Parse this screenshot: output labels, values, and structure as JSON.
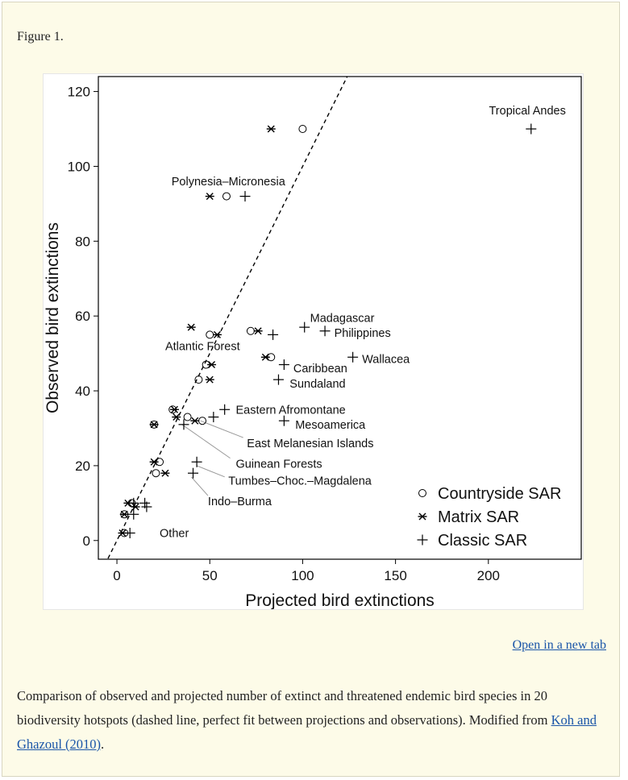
{
  "figure_label": "Figure 1.",
  "open_tab_label": "Open in a new tab",
  "caption": {
    "text": "Comparison of observed and projected number of extinct and threatened endemic bird species in 20 biodiversity hotspots (dashed line, perfect fit between projections and observations). Modified from ",
    "link": "Koh and Ghazoul (2010)",
    "tail": "."
  },
  "chart_data": {
    "type": "scatter",
    "title": "",
    "xlabel": "Projected bird extinctions",
    "ylabel": "Observed bird extinctions",
    "xlim": [
      -10,
      250
    ],
    "ylim": [
      -5,
      124
    ],
    "xticks": [
      0,
      50,
      100,
      150,
      200
    ],
    "yticks": [
      0,
      20,
      40,
      60,
      80,
      100,
      120
    ],
    "reference_line": {
      "style": "dashed",
      "description": "perfect fit",
      "points": [
        [
          0,
          0
        ],
        [
          124,
          124
        ]
      ]
    },
    "legend": {
      "placement": "bottom-right",
      "entries": [
        {
          "marker": "circle",
          "label": "Countryside SAR"
        },
        {
          "marker": "asterisk",
          "label": "Matrix SAR"
        },
        {
          "marker": "plus",
          "label": "Classic SAR"
        }
      ]
    },
    "series": [
      {
        "name": "Countryside SAR",
        "marker": "circle",
        "points": [
          [
            100,
            110
          ],
          [
            59,
            92
          ],
          [
            50,
            55
          ],
          [
            72,
            56
          ],
          [
            83,
            49
          ],
          [
            48,
            47
          ],
          [
            44,
            43
          ],
          [
            30,
            35
          ],
          [
            38,
            33
          ],
          [
            46,
            32
          ],
          [
            20,
            31
          ],
          [
            23,
            21
          ],
          [
            21,
            18
          ],
          [
            8,
            10
          ],
          [
            4,
            7
          ],
          [
            4,
            2
          ]
        ]
      },
      {
        "name": "Matrix SAR",
        "marker": "asterisk",
        "points": [
          [
            83,
            110
          ],
          [
            50,
            92
          ],
          [
            40,
            57
          ],
          [
            54,
            55
          ],
          [
            76,
            56
          ],
          [
            80,
            49
          ],
          [
            51,
            47
          ],
          [
            50,
            43
          ],
          [
            31,
            35
          ],
          [
            32,
            33
          ],
          [
            42,
            32
          ],
          [
            20,
            31
          ],
          [
            20,
            21
          ],
          [
            26,
            18
          ],
          [
            6,
            10
          ],
          [
            10,
            9
          ],
          [
            4,
            7
          ],
          [
            3,
            2
          ]
        ]
      },
      {
        "name": "Classic SAR",
        "marker": "plus",
        "points": [
          [
            223,
            110
          ],
          [
            69,
            92
          ],
          [
            101,
            57
          ],
          [
            112,
            56
          ],
          [
            84,
            55
          ],
          [
            127,
            49
          ],
          [
            90,
            47
          ],
          [
            87,
            43
          ],
          [
            58,
            35
          ],
          [
            90,
            32
          ],
          [
            52,
            33
          ],
          [
            36,
            31
          ],
          [
            43,
            21
          ],
          [
            41,
            18
          ],
          [
            15,
            10
          ],
          [
            16,
            9
          ],
          [
            9,
            10
          ],
          [
            9,
            7
          ],
          [
            7,
            2
          ]
        ]
      }
    ],
    "annotations": [
      {
        "text": "Tropical Andes",
        "x": 221,
        "y": 115
      },
      {
        "text": "Polynesia–Micronesia",
        "x": 60,
        "y": 96
      },
      {
        "text": "Madagascar",
        "x": 104,
        "y": 59.5
      },
      {
        "text": "Philippines",
        "x": 117,
        "y": 55.5
      },
      {
        "text": "Atlantic Forest",
        "x": 26,
        "y": 52
      },
      {
        "text": "Wallacea",
        "x": 132,
        "y": 48.5
      },
      {
        "text": "Caribbean",
        "x": 95,
        "y": 46
      },
      {
        "text": "Sundaland",
        "x": 93,
        "y": 42
      },
      {
        "text": "Eastern Afromontane",
        "x": 64,
        "y": 35
      },
      {
        "text": "Mesoamerica",
        "x": 96,
        "y": 31
      },
      {
        "text": "East Melanesian Islands",
        "x": 70,
        "y": 26
      },
      {
        "text": "Guinean Forests",
        "x": 64,
        "y": 20.5
      },
      {
        "text": "Tumbes–Choc.–Magdalena",
        "x": 60,
        "y": 16
      },
      {
        "text": "Indo–Burma",
        "x": 49,
        "y": 10.5
      },
      {
        "text": "Other",
        "x": 23,
        "y": 2
      }
    ],
    "leader_lines": [
      {
        "from": [
          45,
          32
        ],
        "to": [
          68,
          27.5
        ]
      },
      {
        "from": [
          35,
          31
        ],
        "to": [
          61,
          22
        ]
      },
      {
        "from": [
          43,
          20
        ],
        "to": [
          58,
          17
        ]
      },
      {
        "from": [
          40,
          17
        ],
        "to": [
          49,
          12
        ]
      }
    ]
  }
}
